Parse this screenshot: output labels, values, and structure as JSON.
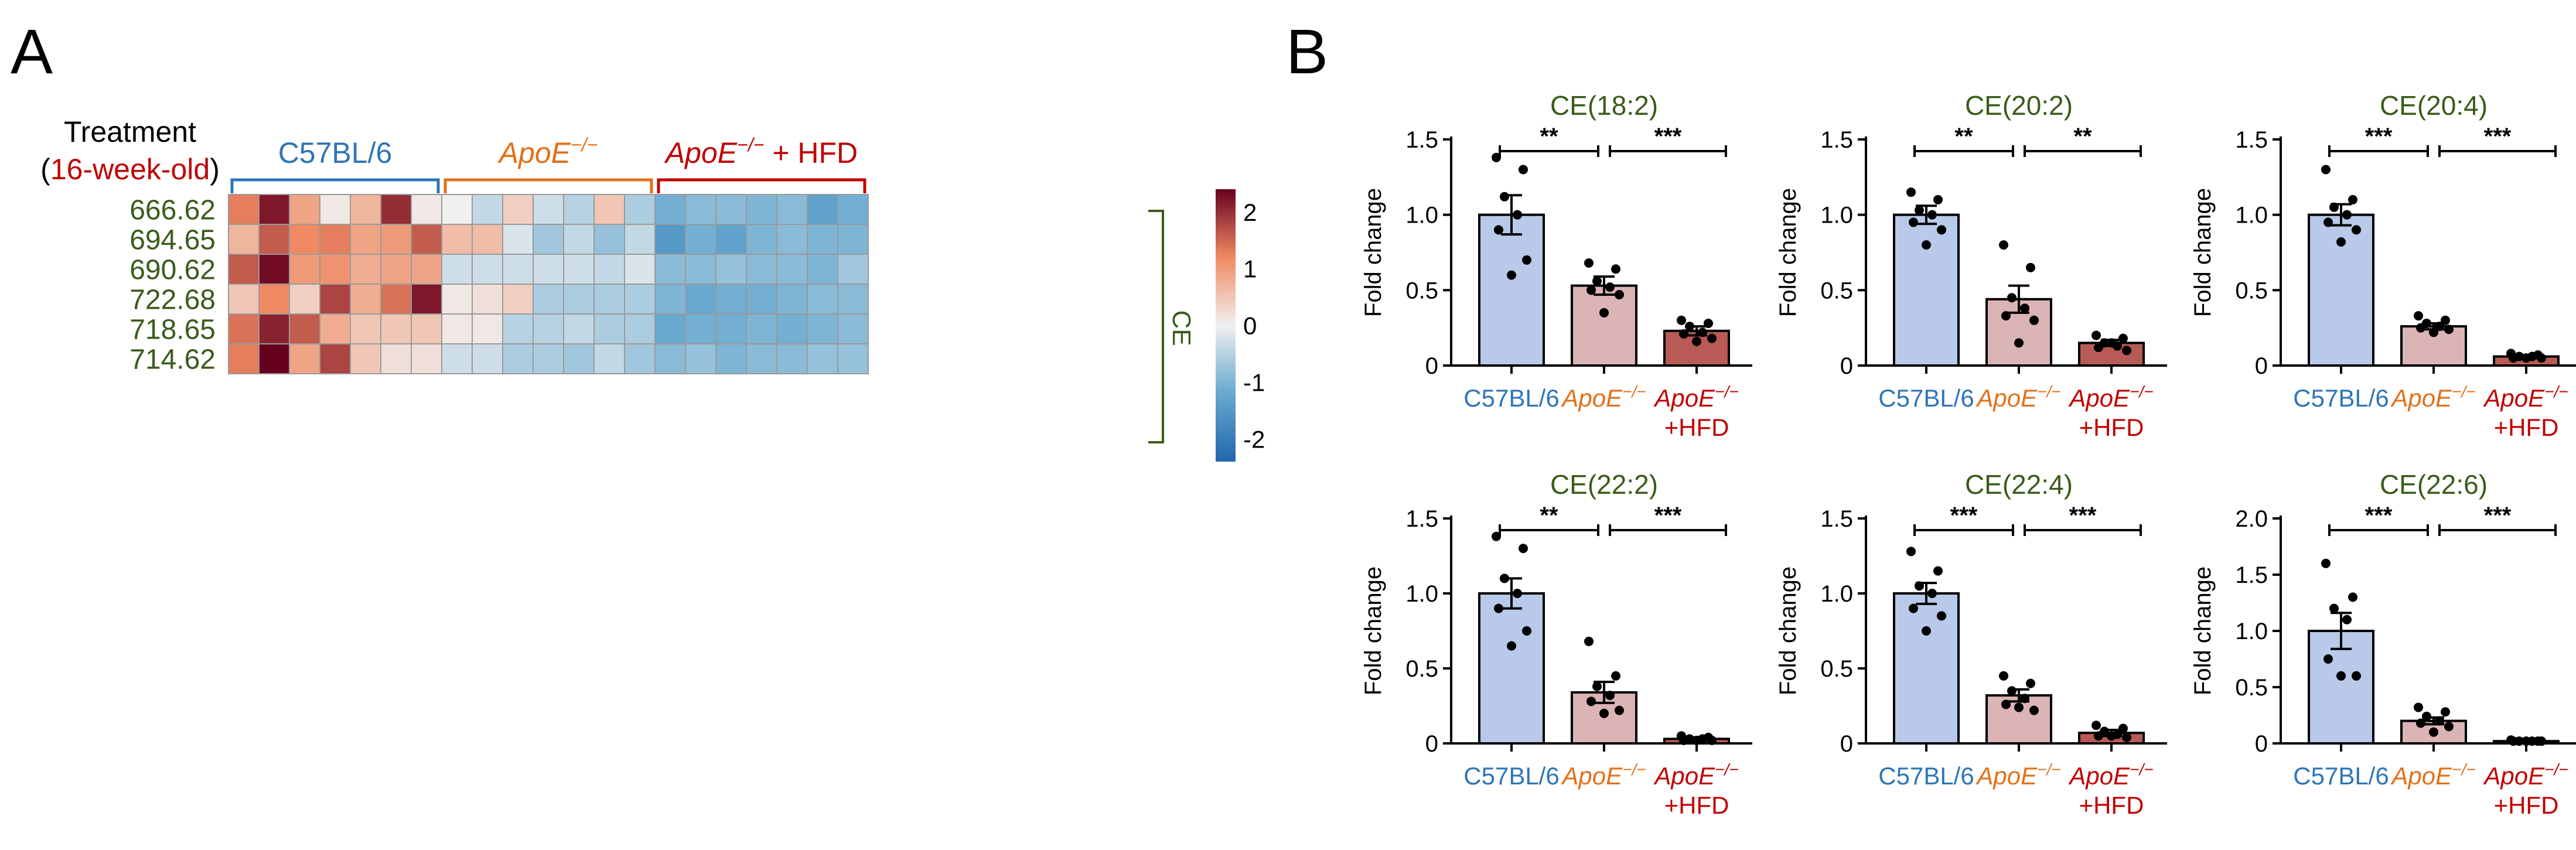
{
  "panels": {
    "a": "A",
    "b": "B"
  },
  "heatmap": {
    "treatment_label": "Treatment",
    "age_label": "16-week-old",
    "age_open": "(",
    "age_close": ")",
    "group_labels": [
      {
        "text": "C57BL/6",
        "sup": ""
      },
      {
        "text": "ApoE",
        "sup": "−/−",
        "suffix": ""
      },
      {
        "text": "ApoE",
        "sup": "−/−",
        "suffix": " + HFD"
      }
    ],
    "row_labels": [
      "666.62",
      "694.65",
      "690.62",
      "722.68",
      "718.65",
      "714.62"
    ],
    "cluster_label": "CE",
    "colorbar_ticks": [
      "2",
      "1",
      "0",
      "-1",
      "-2"
    ],
    "colorbar_range": [
      -2.4,
      2.4
    ],
    "values": [
      [
        1.3,
        2.2,
        0.9,
        0.1,
        0.7,
        2.0,
        0.1,
        0.0,
        -0.4,
        0.4,
        -0.3,
        -0.5,
        0.5,
        -0.6,
        -1.1,
        -0.9,
        -0.9,
        -1.0,
        -0.9,
        -1.3,
        -1.1
      ],
      [
        0.7,
        1.6,
        1.2,
        1.3,
        0.9,
        1.0,
        1.6,
        0.6,
        0.6,
        -0.2,
        -0.7,
        -0.4,
        -0.8,
        -0.4,
        -1.5,
        -1.1,
        -1.3,
        -1.0,
        -0.9,
        -1.0,
        -1.0
      ],
      [
        1.6,
        2.3,
        1.0,
        1.1,
        0.8,
        0.9,
        0.9,
        -0.3,
        -0.3,
        -0.3,
        -0.3,
        -0.3,
        -0.4,
        -0.2,
        -0.9,
        -0.9,
        -0.8,
        -0.9,
        -0.9,
        -1.0,
        -0.7
      ],
      [
        0.5,
        1.2,
        0.4,
        1.8,
        0.8,
        1.4,
        2.2,
        0.1,
        0.2,
        0.4,
        -0.6,
        -0.6,
        -0.6,
        -0.6,
        -1.0,
        -1.2,
        -1.1,
        -1.1,
        -1.0,
        -0.9,
        -0.9
      ],
      [
        1.4,
        2.1,
        1.6,
        0.8,
        0.5,
        0.5,
        0.5,
        0.1,
        0.1,
        -0.5,
        -0.5,
        -0.4,
        -0.6,
        -0.6,
        -1.2,
        -1.1,
        -1.1,
        -1.0,
        -1.1,
        -1.0,
        -0.9
      ],
      [
        1.3,
        2.5,
        0.9,
        1.8,
        0.5,
        0.2,
        0.2,
        -0.3,
        -0.3,
        -0.6,
        -0.6,
        -0.7,
        -0.4,
        -0.7,
        -0.9,
        -0.8,
        -1.0,
        -0.9,
        -0.9,
        -0.8,
        -0.8
      ]
    ]
  },
  "colors": {
    "label_green": "#3a5c1a",
    "group_c57": "#2e75b6",
    "group_apoe": "#e2701a",
    "group_hfd": "#c00000",
    "age_red": "#c00000",
    "bar_c57": "#b8c9e9",
    "bar_apoe": "#dbb4b6",
    "bar_hfd": "#b85a55"
  },
  "category_labels": [
    {
      "line1": "C57BL/6",
      "line1_sup": "",
      "line2": ""
    },
    {
      "line1": "ApoE",
      "line1_sup": "−/−",
      "line2": ""
    },
    {
      "line1": "ApoE",
      "line1_sup": "−/−",
      "line2": "+HFD"
    }
  ],
  "chart_data": [
    {
      "type": "bar",
      "title": "CE(18:2)",
      "ylabel": "Fold change",
      "ylim": [
        0,
        1.5
      ],
      "yticks": [
        "0",
        "0.5",
        "1.0",
        "1.5"
      ],
      "categories": [
        "C57BL/6",
        "ApoE−/−",
        "ApoE−/− +HFD"
      ],
      "values": [
        1.0,
        0.53,
        0.23
      ],
      "errors": [
        0.13,
        0.06,
        0.03
      ],
      "points": [
        [
          1.38,
          1.3,
          1.12,
          1.0,
          0.9,
          0.7,
          0.6
        ],
        [
          0.68,
          0.64,
          0.56,
          0.52,
          0.5,
          0.47,
          0.35
        ],
        [
          0.3,
          0.28,
          0.26,
          0.22,
          0.21,
          0.18,
          0.16
        ]
      ],
      "significance": [
        "**",
        "***"
      ]
    },
    {
      "type": "bar",
      "title": "CE(20:2)",
      "ylabel": "Fold change",
      "ylim": [
        0,
        1.5
      ],
      "yticks": [
        "0",
        "0.5",
        "1.0",
        "1.5"
      ],
      "categories": [
        "C57BL/6",
        "ApoE−/−",
        "ApoE−/− +HFD"
      ],
      "values": [
        1.0,
        0.44,
        0.15
      ],
      "errors": [
        0.06,
        0.09,
        0.02
      ],
      "points": [
        [
          1.15,
          1.1,
          1.03,
          1.0,
          0.95,
          0.9,
          0.8
        ],
        [
          0.8,
          0.65,
          0.45,
          0.38,
          0.33,
          0.3,
          0.15
        ],
        [
          0.2,
          0.18,
          0.15,
          0.13,
          0.12,
          0.1,
          0.15
        ]
      ],
      "significance": [
        "**",
        "**"
      ]
    },
    {
      "type": "bar",
      "title": "CE(20:4)",
      "ylabel": "Fold change",
      "ylim": [
        0,
        1.5
      ],
      "yticks": [
        "0",
        "0.5",
        "1.0",
        "1.5"
      ],
      "categories": [
        "C57BL/6",
        "ApoE−/−",
        "ApoE−/− +HFD"
      ],
      "values": [
        1.0,
        0.26,
        0.06
      ],
      "errors": [
        0.07,
        0.02,
        0.01
      ],
      "points": [
        [
          1.3,
          1.1,
          1.05,
          1.0,
          0.95,
          0.9,
          0.82
        ],
        [
          0.33,
          0.3,
          0.28,
          0.26,
          0.25,
          0.24,
          0.22
        ],
        [
          0.08,
          0.07,
          0.06,
          0.06,
          0.05,
          0.05,
          0.05
        ]
      ],
      "significance": [
        "***",
        "***"
      ]
    },
    {
      "type": "bar",
      "title": "CE(22:2)",
      "ylabel": "Fold change",
      "ylim": [
        0,
        1.5
      ],
      "yticks": [
        "0",
        "0.5",
        "1.0",
        "1.5"
      ],
      "categories": [
        "C57BL/6",
        "ApoE−/−",
        "ApoE−/− +HFD"
      ],
      "values": [
        1.0,
        0.34,
        0.03
      ],
      "errors": [
        0.1,
        0.07,
        0.01
      ],
      "points": [
        [
          1.38,
          1.3,
          1.1,
          1.0,
          0.9,
          0.75,
          0.65
        ],
        [
          0.68,
          0.45,
          0.38,
          0.32,
          0.28,
          0.22,
          0.2
        ],
        [
          0.05,
          0.04,
          0.03,
          0.03,
          0.02,
          0.02,
          0.02
        ]
      ],
      "significance": [
        "**",
        "***"
      ]
    },
    {
      "type": "bar",
      "title": "CE(22:4)",
      "ylabel": "Fold change",
      "ylim": [
        0,
        1.5
      ],
      "yticks": [
        "0",
        "0.5",
        "1.0",
        "1.5"
      ],
      "categories": [
        "C57BL/6",
        "ApoE−/−",
        "ApoE−/− +HFD"
      ],
      "values": [
        1.0,
        0.32,
        0.07
      ],
      "errors": [
        0.07,
        0.04,
        0.02
      ],
      "points": [
        [
          1.28,
          1.15,
          1.05,
          1.0,
          0.9,
          0.85,
          0.75
        ],
        [
          0.45,
          0.4,
          0.35,
          0.3,
          0.26,
          0.22,
          0.24
        ],
        [
          0.12,
          0.1,
          0.08,
          0.06,
          0.05,
          0.04,
          0.05
        ]
      ],
      "significance": [
        "***",
        "***"
      ]
    },
    {
      "type": "bar",
      "title": "CE(22:6)",
      "ylabel": "Fold change",
      "ylim": [
        0,
        2.0
      ],
      "yticks": [
        "0",
        "0.5",
        "1.0",
        "1.5",
        "2.0"
      ],
      "categories": [
        "C57BL/6",
        "ApoE−/−",
        "ApoE−/− +HFD"
      ],
      "values": [
        1.0,
        0.2,
        0.02
      ],
      "errors": [
        0.16,
        0.03,
        0.005
      ],
      "points": [
        [
          1.6,
          1.3,
          1.2,
          1.1,
          0.75,
          0.6,
          0.6
        ],
        [
          0.32,
          0.28,
          0.24,
          0.2,
          0.18,
          0.15,
          0.1
        ],
        [
          0.03,
          0.02,
          0.02,
          0.02,
          0.02,
          0.02,
          0.02
        ]
      ],
      "significance": [
        "***",
        "***"
      ]
    }
  ]
}
